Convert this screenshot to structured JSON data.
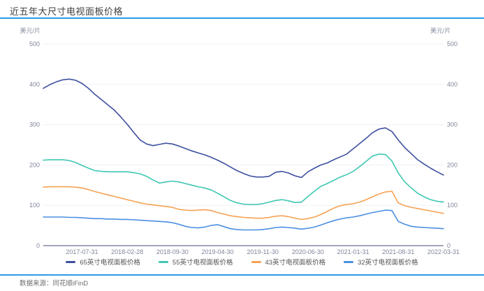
{
  "header": {
    "title": "近五年大尺寸电视面板价格"
  },
  "footer": {
    "source": "数据来源：同花顺iFinD"
  },
  "colors": {
    "accent": "#2e9be6",
    "axis_line": "#6b7193",
    "grid": "#eef0f6",
    "tick_text": "#7f8699",
    "title_text": "#3f3f3f",
    "legend_text": "#565656"
  },
  "chart_data": {
    "type": "line",
    "title": "近五年大尺寸电视面板价格",
    "ylabel_left": "美元/片",
    "ylabel_right": "美元/片",
    "ylim": [
      0,
      500
    ],
    "yticks": [
      500,
      400,
      300,
      200,
      100,
      0
    ],
    "grid": true,
    "legend_position": "bottom",
    "xtick_labels": [
      "2017-07-31",
      "2018-02-28",
      "2018-09-30",
      "2019-04-30",
      "2019-11-30",
      "2020-06-30",
      "2021-01-31",
      "2021-08-31",
      "2022-03-31"
    ],
    "months": [
      "2017-01",
      "2017-02",
      "2017-03",
      "2017-04",
      "2017-05",
      "2017-06",
      "2017-07",
      "2017-08",
      "2017-09",
      "2017-10",
      "2017-11",
      "2017-12",
      "2018-01",
      "2018-02",
      "2018-03",
      "2018-04",
      "2018-05",
      "2018-06",
      "2018-07",
      "2018-08",
      "2018-09",
      "2018-10",
      "2018-11",
      "2018-12",
      "2019-01",
      "2019-02",
      "2019-03",
      "2019-04",
      "2019-05",
      "2019-06",
      "2019-07",
      "2019-08",
      "2019-09",
      "2019-10",
      "2019-11",
      "2019-12",
      "2020-01",
      "2020-02",
      "2020-03",
      "2020-04",
      "2020-05",
      "2020-06",
      "2020-07",
      "2020-08",
      "2020-09",
      "2020-10",
      "2020-11",
      "2020-12",
      "2021-01",
      "2021-02",
      "2021-03",
      "2021-04",
      "2021-05",
      "2021-06",
      "2021-07",
      "2021-08",
      "2021-09",
      "2021-10",
      "2021-11",
      "2021-12",
      "2022-01",
      "2022-02",
      "2022-03"
    ],
    "series": [
      {
        "name": "65英寸电视面板价格",
        "color": "#3d4fa0",
        "values": [
          390,
          399,
          406,
          411,
          413,
          410,
          402,
          390,
          375,
          362,
          349,
          336,
          319,
          301,
          281,
          262,
          252,
          248,
          251,
          254,
          252,
          247,
          241,
          235,
          230,
          225,
          219,
          212,
          204,
          195,
          186,
          179,
          173,
          170,
          170,
          172,
          182,
          184,
          180,
          173,
          169,
          183,
          192,
          200,
          205,
          213,
          220,
          227,
          240,
          253,
          266,
          280,
          289,
          292,
          283,
          262,
          243,
          228,
          213,
          202,
          192,
          183,
          175
        ]
      },
      {
        "name": "55英寸电视面板价格",
        "color": "#3fc7b2",
        "values": [
          212,
          213,
          213,
          213,
          211,
          206,
          199,
          192,
          186,
          184,
          183,
          183,
          183,
          183,
          181,
          178,
          172,
          163,
          155,
          158,
          160,
          158,
          154,
          150,
          146,
          143,
          138,
          130,
          121,
          112,
          106,
          103,
          102,
          102,
          104,
          108,
          112,
          114,
          111,
          107,
          108,
          122,
          135,
          147,
          154,
          162,
          170,
          176,
          184,
          196,
          209,
          222,
          227,
          226,
          210,
          180,
          158,
          143,
          130,
          121,
          114,
          110,
          108
        ]
      },
      {
        "name": "43英寸电视面板价格",
        "color": "#f7a254",
        "values": [
          145,
          146,
          146,
          146,
          146,
          145,
          143,
          139,
          134,
          130,
          126,
          122,
          118,
          114,
          110,
          106,
          103,
          101,
          99,
          97,
          95,
          90,
          88,
          87,
          88,
          89,
          87,
          82,
          78,
          74,
          72,
          70,
          69,
          68,
          68,
          70,
          73,
          74,
          72,
          68,
          65,
          67,
          71,
          77,
          85,
          93,
          99,
          102,
          104,
          108,
          114,
          121,
          128,
          133,
          135,
          106,
          99,
          95,
          92,
          89,
          86,
          83,
          80
        ]
      },
      {
        "name": "32英寸电视面板价格",
        "color": "#4a8fe2",
        "values": [
          71,
          71,
          71,
          71,
          70,
          70,
          69,
          68,
          67,
          67,
          66,
          66,
          65,
          65,
          64,
          63,
          62,
          61,
          60,
          59,
          57,
          53,
          48,
          45,
          44,
          46,
          50,
          52,
          47,
          42,
          40,
          39,
          39,
          39,
          40,
          42,
          45,
          46,
          45,
          43,
          41,
          43,
          46,
          51,
          57,
          62,
          66,
          69,
          71,
          74,
          78,
          82,
          85,
          88,
          87,
          60,
          53,
          48,
          46,
          45,
          44,
          43,
          42
        ]
      }
    ]
  }
}
